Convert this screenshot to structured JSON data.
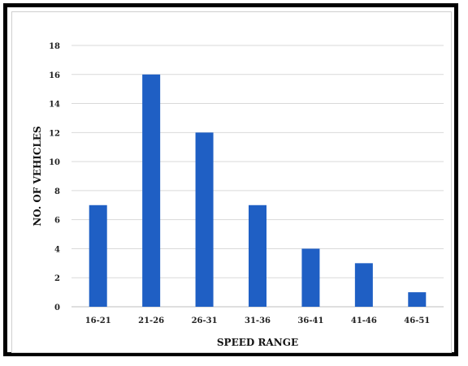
{
  "chart_data": {
    "type": "bar",
    "categories": [
      "16-21",
      "21-26",
      "26-31",
      "31-36",
      "36-41",
      "41-46",
      "46-51"
    ],
    "values": [
      7,
      16,
      12,
      7,
      4,
      3,
      1
    ],
    "xlabel": "SPEED RANGE",
    "ylabel": "NO. OF VEHICLES",
    "ylim": [
      0,
      18
    ],
    "yticks": [
      0,
      2,
      4,
      6,
      8,
      10,
      12,
      14,
      16,
      18
    ],
    "grid": true,
    "legend": "none",
    "bar_color": "#1f5fc4",
    "grid_color": "#d9d9d9"
  }
}
